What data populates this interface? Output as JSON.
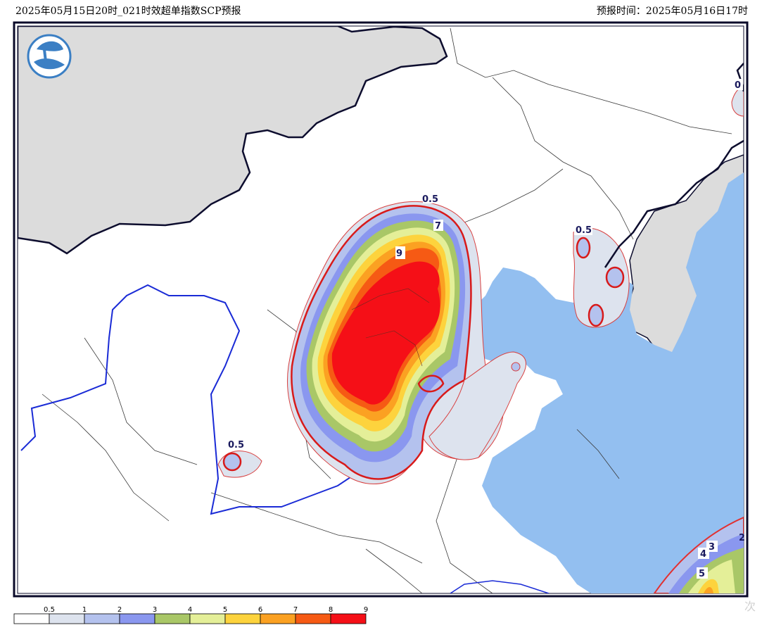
{
  "header": {
    "title": "2025年05月15日20时_021时效超单指数SCP预报",
    "forecast_time": "预报时间：2025年05月16日17时"
  },
  "map": {
    "product": "SCP",
    "contour_labels": [
      "0.5",
      "9",
      "7",
      "0.5",
      "0.5",
      "0",
      "3",
      "4",
      "5",
      "2"
    ]
  },
  "colorbar": {
    "levels": [
      "0.5",
      "1",
      "2",
      "3",
      "4",
      "5",
      "6",
      "7",
      "8",
      "9"
    ],
    "colors": [
      "#ffffff",
      "#dde3ee",
      "#b4c2ee",
      "#8a97ef",
      "#a9c767",
      "#e4ef98",
      "#fdd33d",
      "#fba122",
      "#f65a14",
      "#f50f17"
    ]
  },
  "colors": {
    "sea": "#93bff0",
    "foreign_land": "#dcdcdc",
    "border_dark": "#0d0d2e",
    "boundary_blue": "#1a2bd6",
    "frame": "#0b0b2a"
  }
}
